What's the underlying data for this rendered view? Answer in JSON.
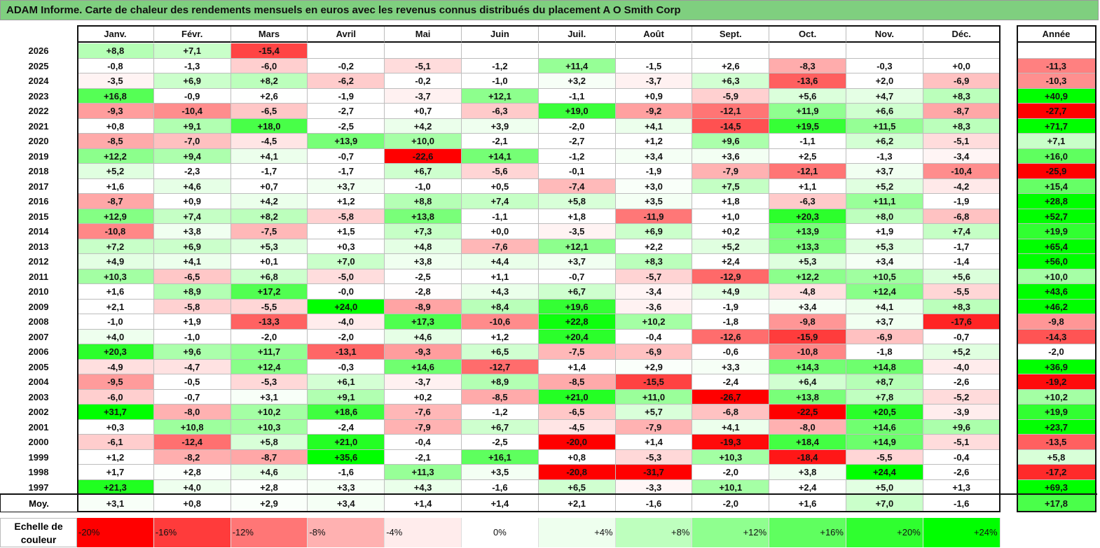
{
  "title": "ADAM Informe. Carte de chaleur des rendements mensuels en euros avec les revenus connus distribués du placement A O Smith Corp",
  "chart_data": {
    "type": "heatmap",
    "months": [
      "Janv.",
      "Févr.",
      "Mars",
      "Avril",
      "Mai",
      "Juin",
      "Juil.",
      "Août",
      "Sept.",
      "Oct.",
      "Nov.",
      "Déc."
    ],
    "year_column_label": "Année",
    "avg_label": "Moy.",
    "rows": [
      {
        "year": "2026",
        "values": [
          "+8,8",
          "+7,1",
          "-15,4",
          "",
          "",
          "",
          "",
          "",
          "",
          "",
          "",
          ""
        ],
        "annual": ""
      },
      {
        "year": "2025",
        "values": [
          "-0,8",
          "-1,3",
          "-6,0",
          "-0,2",
          "-5,1",
          "-1,2",
          "+11,4",
          "-1,5",
          "+2,6",
          "-8,3",
          "-0,3",
          "+0,0"
        ],
        "annual": "-11,3"
      },
      {
        "year": "2024",
        "values": [
          "-3,5",
          "+6,9",
          "+8,2",
          "-6,2",
          "-0,2",
          "-1,0",
          "+3,2",
          "-3,7",
          "+6,3",
          "-13,6",
          "+2,0",
          "-6,9"
        ],
        "annual": "-10,3"
      },
      {
        "year": "2023",
        "values": [
          "+16,8",
          "-0,9",
          "+2,6",
          "-1,9",
          "-3,7",
          "+12,1",
          "-1,1",
          "+0,9",
          "-5,9",
          "+5,6",
          "+4,7",
          "+8,3"
        ],
        "annual": "+40,9"
      },
      {
        "year": "2022",
        "values": [
          "-9,3",
          "-10,4",
          "-6,5",
          "-2,7",
          "+0,7",
          "-6,3",
          "+19,0",
          "-9,2",
          "-12,1",
          "+11,9",
          "+6,6",
          "-8,7"
        ],
        "annual": "-27,7"
      },
      {
        "year": "2021",
        "values": [
          "+0,8",
          "+9,1",
          "+18,0",
          "-2,5",
          "+4,2",
          "+3,9",
          "-2,0",
          "+4,1",
          "-14,5",
          "+19,5",
          "+11,5",
          "+8,3"
        ],
        "annual": "+71,7"
      },
      {
        "year": "2020",
        "values": [
          "-8,5",
          "-7,0",
          "-4,5",
          "+13,9",
          "+10,0",
          "-2,1",
          "-2,7",
          "+1,2",
          "+9,6",
          "-1,1",
          "+6,2",
          "-5,1"
        ],
        "annual": "+7,1"
      },
      {
        "year": "2019",
        "values": [
          "+12,2",
          "+9,4",
          "+4,1",
          "-0,7",
          "-22,6",
          "+14,1",
          "-1,2",
          "+3,4",
          "+3,6",
          "+2,5",
          "-1,3",
          "-3,4"
        ],
        "annual": "+16,0"
      },
      {
        "year": "2018",
        "values": [
          "+5,2",
          "-2,3",
          "-1,7",
          "-1,7",
          "+6,7",
          "-5,6",
          "-0,1",
          "-1,9",
          "-7,9",
          "-12,1",
          "+3,7",
          "-10,4"
        ],
        "annual": "-25,9"
      },
      {
        "year": "2017",
        "values": [
          "+1,6",
          "+4,6",
          "+0,7",
          "+3,7",
          "-1,0",
          "+0,5",
          "-7,4",
          "+3,0",
          "+7,5",
          "+1,1",
          "+5,2",
          "-4,2"
        ],
        "annual": "+15,4"
      },
      {
        "year": "2016",
        "values": [
          "-8,7",
          "+0,9",
          "+4,2",
          "+1,2",
          "+8,8",
          "+7,4",
          "+5,8",
          "+3,5",
          "+1,8",
          "-6,3",
          "+11,1",
          "-1,9"
        ],
        "annual": "+28,8"
      },
      {
        "year": "2015",
        "values": [
          "+12,9",
          "+7,4",
          "+8,2",
          "-5,8",
          "+13,8",
          "-1,1",
          "+1,8",
          "-11,9",
          "+1,0",
          "+20,3",
          "+8,0",
          "-6,8"
        ],
        "annual": "+52,7"
      },
      {
        "year": "2014",
        "values": [
          "-10,8",
          "+3,8",
          "-7,5",
          "+1,5",
          "+7,3",
          "+0,0",
          "-3,5",
          "+6,9",
          "+0,2",
          "+13,9",
          "+1,9",
          "+7,4"
        ],
        "annual": "+19,9"
      },
      {
        "year": "2013",
        "values": [
          "+7,2",
          "+6,9",
          "+5,3",
          "+0,3",
          "+4,8",
          "-7,6",
          "+12,1",
          "+2,2",
          "+5,2",
          "+13,3",
          "+5,3",
          "-1,7"
        ],
        "annual": "+65,4"
      },
      {
        "year": "2012",
        "values": [
          "+4,9",
          "+4,1",
          "+0,1",
          "+7,0",
          "+3,8",
          "+4,4",
          "+3,7",
          "+8,3",
          "+2,4",
          "+5,3",
          "+3,4",
          "-1,4"
        ],
        "annual": "+56,0"
      },
      {
        "year": "2011",
        "values": [
          "+10,3",
          "-6,5",
          "+6,8",
          "-5,0",
          "-2,5",
          "+1,1",
          "-0,7",
          "-5,7",
          "-12,9",
          "+12,2",
          "+10,5",
          "+5,6"
        ],
        "annual": "+10,0"
      },
      {
        "year": "2010",
        "values": [
          "+1,6",
          "+8,9",
          "+17,2",
          "-0,0",
          "-2,8",
          "+4,3",
          "+6,7",
          "-3,4",
          "+4,9",
          "-4,8",
          "+12,4",
          "-5,5"
        ],
        "annual": "+43,6"
      },
      {
        "year": "2009",
        "values": [
          "+2,1",
          "-5,8",
          "-5,5",
          "+24,0",
          "-8,9",
          "+8,4",
          "+19,6",
          "-3,6",
          "-1,9",
          "+3,4",
          "+4,1",
          "+8,3"
        ],
        "annual": "+46,2"
      },
      {
        "year": "2008",
        "values": [
          "-1,0",
          "+1,9",
          "-13,3",
          "-4,0",
          "+17,3",
          "-10,6",
          "+22,8",
          "+10,2",
          "-1,8",
          "-9,8",
          "+3,7",
          "-17,6"
        ],
        "annual": "-9,8"
      },
      {
        "year": "2007",
        "values": [
          "+4,0",
          "-1,0",
          "-2,0",
          "-2,0",
          "+4,6",
          "+1,2",
          "+20,4",
          "-0,4",
          "-12,6",
          "-15,9",
          "-6,9",
          "-0,7"
        ],
        "annual": "-14,3"
      },
      {
        "year": "2006",
        "values": [
          "+20,3",
          "+9,6",
          "+11,7",
          "-13,1",
          "-9,3",
          "+6,5",
          "-7,5",
          "-6,9",
          "-0,6",
          "-10,8",
          "-1,8",
          "+5,2"
        ],
        "annual": "-2,0"
      },
      {
        "year": "2005",
        "values": [
          "-4,9",
          "-4,7",
          "+12,4",
          "-0,3",
          "+14,6",
          "-12,7",
          "+1,4",
          "+2,9",
          "+3,3",
          "+14,3",
          "+14,8",
          "-4,0"
        ],
        "annual": "+36,9"
      },
      {
        "year": "2004",
        "values": [
          "-9,5",
          "-0,5",
          "-5,3",
          "+6,1",
          "-3,7",
          "+8,9",
          "-8,5",
          "-15,5",
          "-2,4",
          "+6,4",
          "+8,7",
          "-2,6"
        ],
        "annual": "-19,2"
      },
      {
        "year": "2003",
        "values": [
          "-6,0",
          "-0,7",
          "+3,1",
          "+9,1",
          "+0,2",
          "-8,5",
          "+21,0",
          "+11,0",
          "-26,7",
          "+13,8",
          "+7,8",
          "-5,2"
        ],
        "annual": "+10,2"
      },
      {
        "year": "2002",
        "values": [
          "+31,7",
          "-8,0",
          "+10,2",
          "+18,6",
          "-7,6",
          "-1,2",
          "-6,5",
          "+5,7",
          "-6,8",
          "-22,5",
          "+20,5",
          "-3,9"
        ],
        "annual": "+19,9"
      },
      {
        "year": "2001",
        "values": [
          "+0,3",
          "+10,8",
          "+10,3",
          "-2,4",
          "-7,9",
          "+6,7",
          "-4,5",
          "-7,9",
          "+4,1",
          "-8,0",
          "+14,6",
          "+9,6"
        ],
        "annual": "+23,7"
      },
      {
        "year": "2000",
        "values": [
          "-6,1",
          "-12,4",
          "+5,8",
          "+21,0",
          "-0,4",
          "-2,5",
          "-20,0",
          "+1,4",
          "-19,3",
          "+18,4",
          "+14,9",
          "-5,1"
        ],
        "annual": "-13,5"
      },
      {
        "year": "1999",
        "values": [
          "+1,2",
          "-8,2",
          "-8,7",
          "+35,6",
          "-2,1",
          "+16,1",
          "+0,8",
          "-5,3",
          "+10,3",
          "-18,4",
          "-5,5",
          "-0,4"
        ],
        "annual": "+5,8"
      },
      {
        "year": "1998",
        "values": [
          "+1,7",
          "+2,8",
          "+4,6",
          "-1,6",
          "+11,3",
          "+3,5",
          "-20,8",
          "-31,7",
          "-2,0",
          "+3,8",
          "+24,4",
          "-2,6"
        ],
        "annual": "-17,2"
      },
      {
        "year": "1997",
        "values": [
          "+21,3",
          "+4,0",
          "+2,8",
          "+3,3",
          "+4,3",
          "-1,6",
          "+6,5",
          "-3,3",
          "+10,1",
          "+2,4",
          "+5,0",
          "+1,3"
        ],
        "annual": "+69,3"
      }
    ],
    "averages": [
      "+3,1",
      "+0,8",
      "+2,9",
      "+3,4",
      "+1,4",
      "+1,4",
      "+2,1",
      "-1,6",
      "-2,0",
      "+1,6",
      "+7,0",
      "-1,6"
    ],
    "avg_annual": "+17,8",
    "scale_label": "Echelle de couleur",
    "scale": [
      "-20%",
      "-16%",
      "-12%",
      "-8%",
      "-4%",
      "0%",
      "+4%",
      "+8%",
      "+12%",
      "+16%",
      "+20%",
      "+24%"
    ],
    "colors": {
      "negative": "#ff0000",
      "neutral": "#ffffff",
      "positive": "#00ff00",
      "title_bg": "#7fcf7f"
    }
  }
}
